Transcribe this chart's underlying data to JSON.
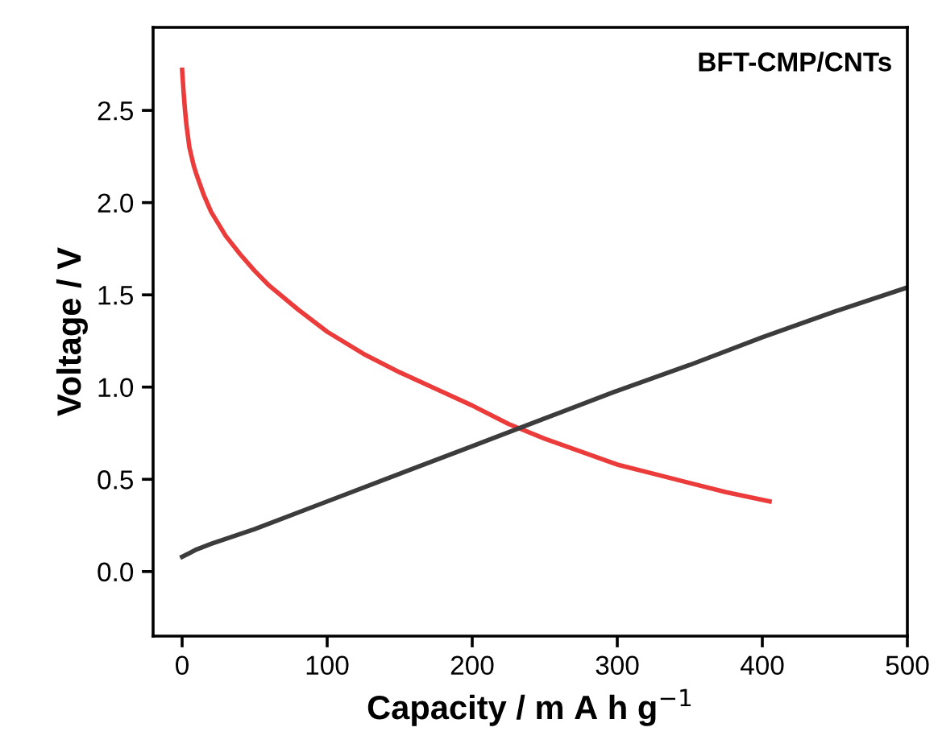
{
  "chart_data": {
    "type": "line",
    "xlabel": "Capacity / m A h g$^{−1}$",
    "ylabel": "Voltage / V",
    "annotations": [
      "BFT-CMP/CNTs"
    ],
    "series": [
      {
        "color": "#ec3b3b",
        "x": [
          0,
          1,
          2,
          3,
          5,
          8,
          10,
          15,
          20,
          30,
          40,
          50,
          60,
          80,
          100,
          125,
          150,
          175,
          200,
          225,
          250,
          275,
          300,
          325,
          350,
          375,
          405
        ],
        "values": [
          2.72,
          2.6,
          2.5,
          2.42,
          2.3,
          2.2,
          2.15,
          2.04,
          1.95,
          1.82,
          1.72,
          1.63,
          1.55,
          1.42,
          1.3,
          1.18,
          1.08,
          0.99,
          0.9,
          0.8,
          0.72,
          0.65,
          0.58,
          0.53,
          0.48,
          0.43,
          0.38
        ]
      },
      {
        "color": "#3c3c3c",
        "x": [
          0,
          5,
          10,
          20,
          50,
          100,
          150,
          200,
          250,
          300,
          350,
          400,
          450,
          500
        ],
        "values": [
          0.08,
          0.1,
          0.12,
          0.15,
          0.23,
          0.38,
          0.53,
          0.68,
          0.83,
          0.98,
          1.12,
          1.27,
          1.41,
          1.54
        ]
      }
    ],
    "xlim": [
      -20,
      500
    ],
    "ylim": [
      -0.35,
      2.95
    ],
    "xticks": [
      0,
      100,
      200,
      300,
      400,
      500
    ],
    "yticks": [
      {
        "value": 0,
        "label": "0.0"
      },
      0.5,
      {
        "value": 1,
        "label": "1.0"
      },
      1.5,
      {
        "value": 2,
        "label": "2.0"
      },
      2.5
    ],
    "grid": false,
    "legend": false
  }
}
